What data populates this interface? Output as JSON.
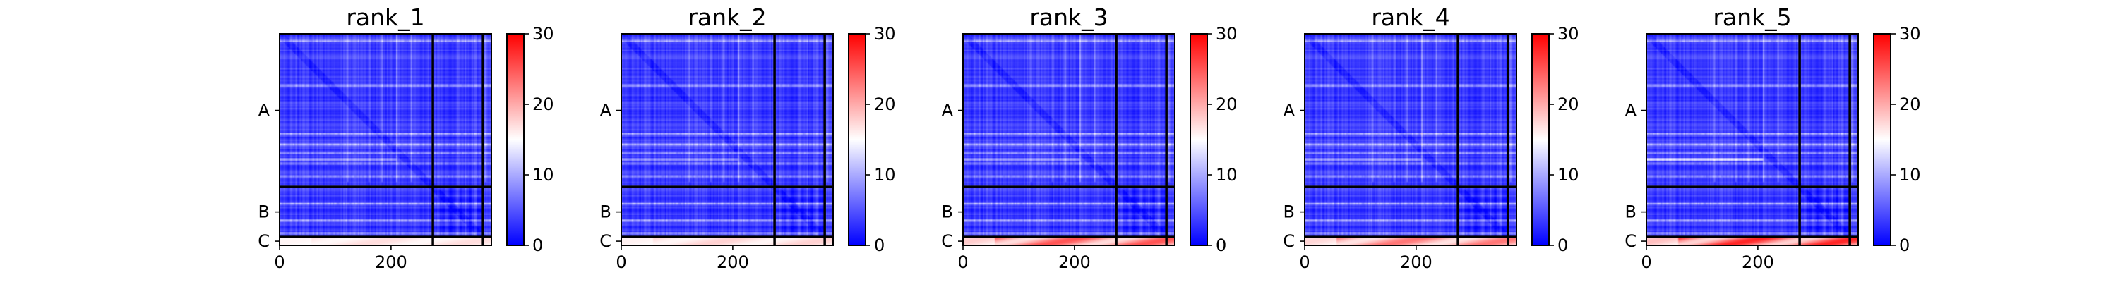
{
  "chart_data": {
    "type": "heatmap",
    "panels": [
      {
        "title": "rank_1",
        "bottom_band_intensity": 0.15,
        "hot_row_intensity": 0.45
      },
      {
        "title": "rank_2",
        "bottom_band_intensity": 0.2,
        "hot_row_intensity": 0.4
      },
      {
        "title": "rank_3",
        "bottom_band_intensity": 0.75,
        "hot_row_intensity": 0.45
      },
      {
        "title": "rank_4",
        "bottom_band_intensity": 0.6,
        "hot_row_intensity": 0.45
      },
      {
        "title": "rank_5",
        "bottom_band_intensity": 0.95,
        "hot_row_intensity": 0.85
      }
    ],
    "x_range": [
      0,
      380
    ],
    "x_ticks": [
      0,
      200
    ],
    "y_range": [
      0,
      380
    ],
    "chains": [
      {
        "label": "A",
        "start": 0,
        "end": 275
      },
      {
        "label": "B",
        "start": 275,
        "end": 365
      },
      {
        "label": "C",
        "start": 365,
        "end": 380
      }
    ],
    "colorbar": {
      "range": [
        0,
        30
      ],
      "ticks": [
        0,
        10,
        20,
        30
      ],
      "colormap": [
        "#0000ff",
        "#ffffff",
        "#ff0000"
      ],
      "center": 15
    }
  }
}
